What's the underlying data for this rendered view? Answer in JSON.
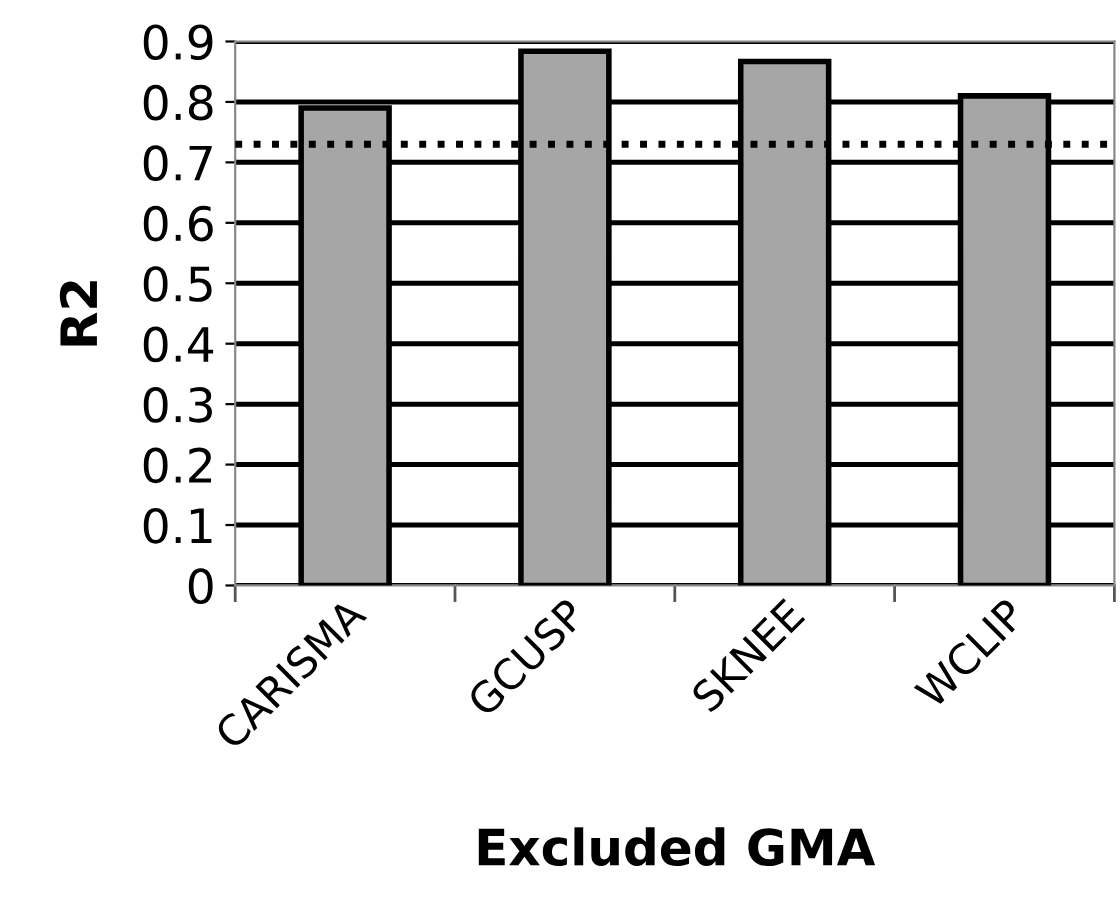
{
  "chart_data": {
    "type": "bar",
    "xlabel": "Excluded GMA",
    "ylabel": "R2",
    "categories": [
      "CARISMA",
      "GCUSP",
      "SKNEE",
      "WCLIP"
    ],
    "values": [
      0.79,
      0.884,
      0.867,
      0.81
    ],
    "color": "#a6a6a6",
    "ylim": [
      0,
      0.9
    ],
    "yticks": [
      0,
      0.1,
      0.2,
      0.3,
      0.4,
      0.5,
      0.6,
      0.7,
      0.8,
      0.9
    ],
    "grid": "y",
    "legend": false,
    "ref_lines": [
      {
        "axis": "y",
        "value": 0.73,
        "color": "#000000",
        "line_style": "dotted"
      }
    ]
  }
}
